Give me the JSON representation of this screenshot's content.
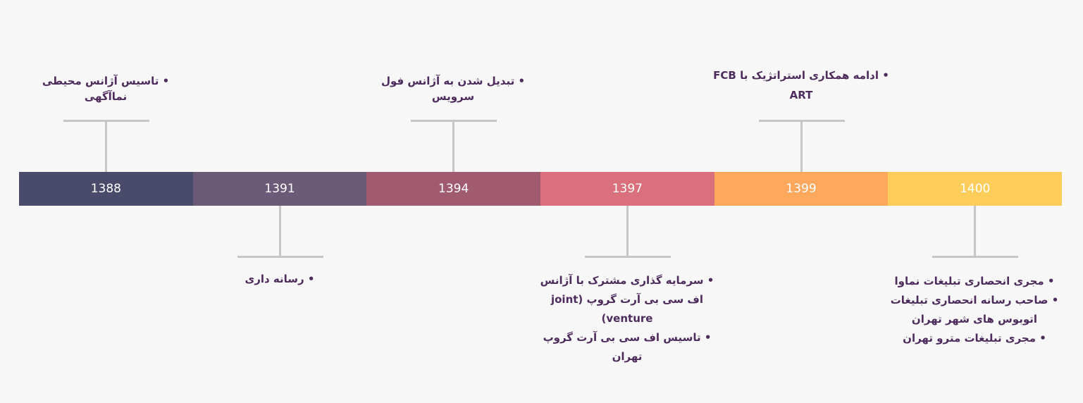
{
  "segments": [
    {
      "year": "1388",
      "color": "#4a4b6a"
    },
    {
      "year": "1391",
      "color": "#6b5b78"
    },
    {
      "year": "1394",
      "color": "#a05b70"
    },
    {
      "year": "1397",
      "color": "#d9707b"
    },
    {
      "year": "1399",
      "color": "#fda85c"
    },
    {
      "year": "1400",
      "color": "#fccd5b"
    }
  ],
  "events": {
    "e1388": [
      "• تاسیس آژانس محیطی",
      "نماآگهی"
    ],
    "e1391": [
      "• رسانه داری"
    ],
    "e1394": [
      "• تبدیل شدن به آژانس فول",
      "سرویس"
    ],
    "e1397": [
      "• سرمایه گذاری مشترک با آژانس",
      "اف سی بی آرت گروپ (joint",
      "venture)",
      "• تاسیس اف سی بی آرت گروپ",
      "تهران"
    ],
    "e1399": [
      "• ادامه همکاری استراتژیک با FCB",
      "ART"
    ],
    "e1400": [
      "• مجری انحصاری تبلیغات نماوا",
      "• صاحب رسانه انحصاری تبلیغات",
      "اتوبوس های شهر تهران",
      "• مجری تبلیغات مترو تهران"
    ]
  }
}
